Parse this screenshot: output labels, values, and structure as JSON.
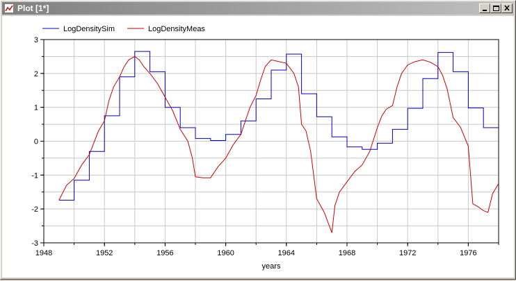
{
  "window": {
    "title": "Plot [1*]",
    "buttons": {
      "minimize": "minimize",
      "maximize": "maximize",
      "close": "close"
    }
  },
  "chart_data": {
    "type": "line",
    "xlabel": "years",
    "ylabel": "",
    "xlim": [
      1948,
      1978
    ],
    "ylim": [
      -3,
      3
    ],
    "xticks": [
      1948,
      1952,
      1956,
      1960,
      1964,
      1968,
      1972,
      1976
    ],
    "yticks": [
      -3,
      -2,
      -1,
      0,
      1,
      2,
      3
    ],
    "grid": true,
    "legend_position": "top-left",
    "series": [
      {
        "name": "LogDensitySim",
        "color": "#0000cc",
        "step": true,
        "x": [
          1949,
          1950,
          1951,
          1952,
          1953,
          1954,
          1955,
          1956,
          1957,
          1958,
          1959,
          1960,
          1961,
          1962,
          1963,
          1964,
          1965,
          1966,
          1967,
          1968,
          1969,
          1970,
          1971,
          1972,
          1973,
          1974,
          1975,
          1976,
          1977,
          1978
        ],
        "y": [
          -1.74,
          -1.15,
          -0.3,
          0.75,
          1.9,
          2.65,
          2.05,
          1.0,
          0.4,
          0.08,
          0.02,
          0.2,
          0.6,
          1.25,
          2.1,
          2.57,
          1.4,
          0.72,
          0.13,
          -0.17,
          -0.24,
          -0.06,
          0.35,
          0.97,
          1.85,
          2.62,
          2.05,
          0.98,
          0.4,
          0.4
        ]
      },
      {
        "name": "LogDensityMeas",
        "color": "#cc0000",
        "step": false,
        "x": [
          1949,
          1949.5,
          1950,
          1950.5,
          1951,
          1951.3,
          1951.6,
          1952,
          1952.3,
          1952.6,
          1953,
          1953.3,
          1953.6,
          1954,
          1954.3,
          1954.6,
          1955,
          1955.5,
          1956,
          1956.5,
          1957,
          1957.5,
          1957.8,
          1958,
          1958.5,
          1959,
          1959.5,
          1960,
          1960.5,
          1961,
          1961.3,
          1961.6,
          1962,
          1962.3,
          1962.6,
          1963,
          1963.5,
          1964,
          1964.5,
          1964.8,
          1965,
          1965.3,
          1965.6,
          1966,
          1966.5,
          1967,
          1967.2,
          1967.5,
          1968,
          1968.5,
          1969,
          1969.5,
          1970,
          1970.3,
          1970.6,
          1971,
          1971.3,
          1971.6,
          1972,
          1972.5,
          1973,
          1973.5,
          1974,
          1974.3,
          1974.6,
          1975,
          1975.5,
          1976,
          1976.3,
          1976.6,
          1977,
          1977.3,
          1977.6,
          1978
        ],
        "y": [
          -1.74,
          -1.3,
          -1.1,
          -0.7,
          -0.4,
          -0.05,
          0.3,
          0.6,
          1.2,
          1.6,
          1.9,
          2.2,
          2.4,
          2.5,
          2.4,
          2.2,
          2.0,
          1.7,
          1.3,
          0.9,
          0.35,
          0.0,
          -0.5,
          -1.05,
          -1.08,
          -1.08,
          -0.75,
          -0.5,
          -0.1,
          0.2,
          0.6,
          1.0,
          1.35,
          1.8,
          2.2,
          2.4,
          2.35,
          2.3,
          2.0,
          1.6,
          0.5,
          0.3,
          -0.3,
          -1.7,
          -2.1,
          -2.7,
          -1.9,
          -1.5,
          -1.2,
          -0.9,
          -0.7,
          -0.3,
          0.4,
          0.75,
          0.95,
          1.05,
          1.6,
          2.0,
          2.25,
          2.35,
          2.4,
          2.33,
          2.2,
          1.95,
          1.55,
          0.7,
          0.4,
          -0.15,
          -1.85,
          -1.92,
          -2.05,
          -2.1,
          -1.55,
          -1.25
        ]
      }
    ]
  }
}
